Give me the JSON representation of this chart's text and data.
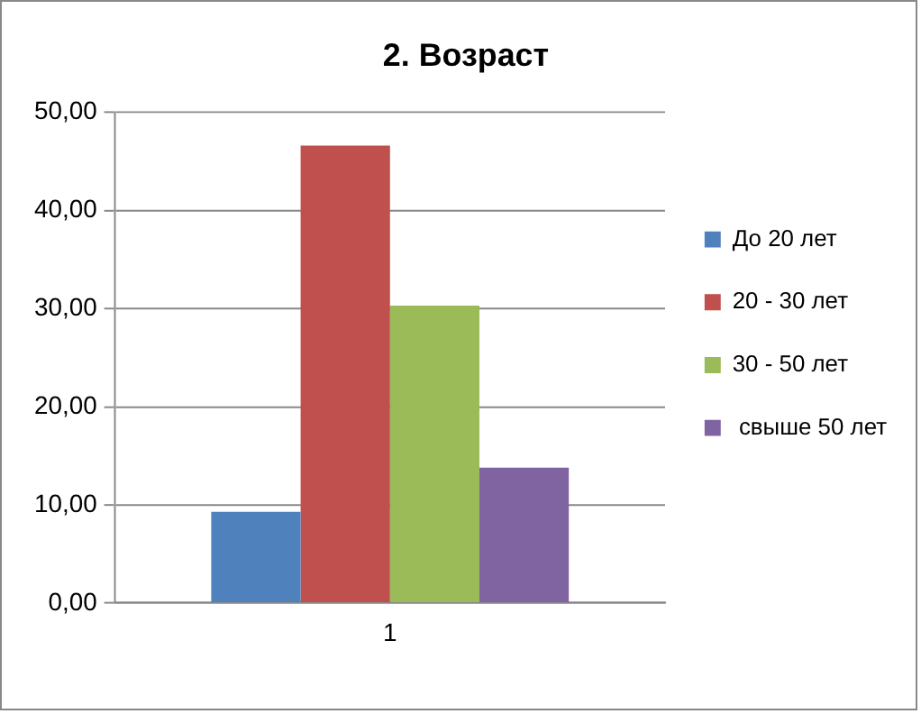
{
  "chart_data": {
    "type": "bar",
    "title": "2. Возраст",
    "categories": [
      "1"
    ],
    "series": [
      {
        "name": "До 20 лет",
        "color": "#4f81bd",
        "values": [
          9.3
        ]
      },
      {
        "name": "20 - 30 лет",
        "color": "#c0504d",
        "values": [
          46.6
        ]
      },
      {
        "name": "30 - 50 лет",
        "color": "#9bbb59",
        "values": [
          30.3
        ]
      },
      {
        "name": " свыше 50 лет",
        "color": "#8064a2",
        "values": [
          13.8
        ]
      }
    ],
    "ylim": [
      0,
      50
    ],
    "yticks": [
      {
        "value": 0,
        "label": "0,00"
      },
      {
        "value": 10,
        "label": "10,00"
      },
      {
        "value": 20,
        "label": "20,00"
      },
      {
        "value": 30,
        "label": "30,00"
      },
      {
        "value": 40,
        "label": "40,00"
      },
      {
        "value": 50,
        "label": "50,00"
      }
    ],
    "grid": "y",
    "legend": "right"
  }
}
